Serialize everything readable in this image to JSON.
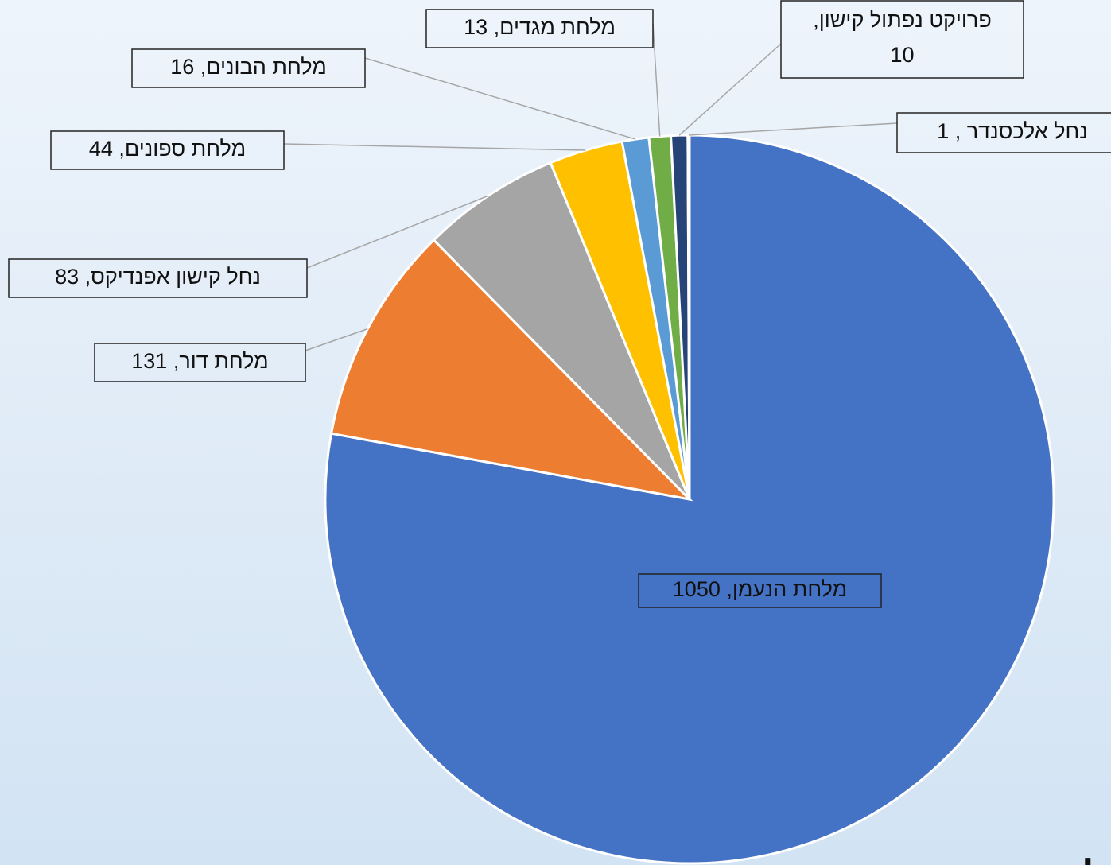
{
  "chart_data": {
    "type": "pie",
    "categories": [
      "מלחת הנעמן",
      "מלחת דור",
      "נחל קישון אפנדיקס",
      "מלחת ספונים",
      "מלחת הבונים",
      "מלחת מגדים",
      "פרויקט נפתול קישון",
      "נחל אלכסנדר"
    ],
    "values": [
      1050,
      131,
      83,
      44,
      16,
      13,
      10,
      1
    ],
    "value_labels": [
      "מלחת הנעמן, 1050",
      "מלחת דור,  131",
      "נחל קישון אפנדיקס,  83",
      "מלחת ספונים,  44",
      "מלחת הבונים,  16",
      "מלחת מגדים,  13",
      "פרויקט נפתול קישון, 10",
      "נחל אלכסנדר , 1"
    ],
    "colors": [
      "#4472c4",
      "#ed7d31",
      "#a5a5a5",
      "#ffc000",
      "#5b9bd5",
      "#70ad47",
      "#264478",
      "#9e480e"
    ],
    "corner_text": "לבד"
  }
}
